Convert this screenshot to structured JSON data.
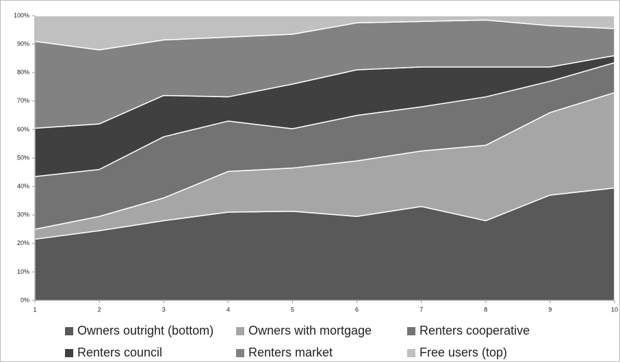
{
  "chart_data": {
    "type": "stacked-area-100",
    "x": [
      1,
      2,
      3,
      4,
      5,
      6,
      7,
      8,
      9,
      10
    ],
    "xlim": [
      1,
      10
    ],
    "xticks": [
      1,
      2,
      3,
      4,
      5,
      6,
      7,
      8,
      9,
      10
    ],
    "ylim": [
      0,
      100
    ],
    "yticks": [
      {
        "value": 0,
        "label": "0%"
      },
      {
        "value": 10,
        "label": "10%"
      },
      {
        "value": 20,
        "label": "20%"
      },
      {
        "value": 30,
        "label": "30%"
      },
      {
        "value": 40,
        "label": "40%"
      },
      {
        "value": 50,
        "label": "50%"
      },
      {
        "value": 60,
        "label": "60%"
      },
      {
        "value": 70,
        "label": "70%"
      },
      {
        "value": 80,
        "label": "80%"
      },
      {
        "value": 90,
        "label": "90%"
      },
      {
        "value": 100,
        "label": "100%"
      }
    ],
    "grid": false,
    "series": [
      {
        "name": "Owners outright (bottom)",
        "color": "#595959",
        "values": [
          21.5,
          24.5,
          28,
          31,
          31.3,
          29.5,
          33,
          28,
          37,
          39.5
        ]
      },
      {
        "name": "Owners with mortgage",
        "color": "#a6a6a6",
        "values": [
          3.5,
          5,
          8,
          14.3,
          15.2,
          19.5,
          19.5,
          26.5,
          29,
          33.5
        ]
      },
      {
        "name": "Renters cooperative",
        "color": "#737373",
        "values": [
          18.5,
          16.5,
          21.5,
          17.7,
          13.8,
          16,
          15.5,
          17,
          11,
          10.5
        ]
      },
      {
        "name": "Renters council",
        "color": "#404040",
        "values": [
          17,
          16,
          14.5,
          8.5,
          15.7,
          16,
          14,
          10.5,
          5,
          2.5
        ]
      },
      {
        "name": "Renters market",
        "color": "#828282",
        "values": [
          30.5,
          26,
          19.5,
          21,
          17.5,
          16.5,
          16,
          16.5,
          14.5,
          9.5
        ]
      },
      {
        "name": "Free users (top)",
        "color": "#c0c0c0",
        "values": [
          9,
          12,
          8.5,
          7.5,
          6.5,
          2.5,
          2,
          1.5,
          3.5,
          4.5
        ]
      }
    ]
  }
}
